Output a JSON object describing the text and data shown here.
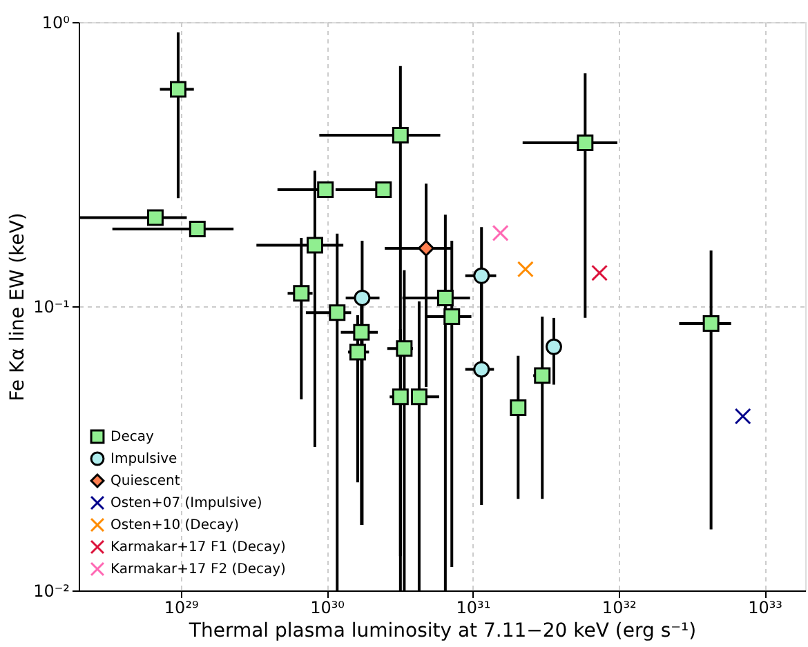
{
  "chart_data": {
    "type": "scatter",
    "xlabel": "Thermal plasma luminosity at 7.11−20 keV (erg s⁻¹)",
    "ylabel": "Fe Kα line EW (keV)",
    "log": "xy",
    "grid": true,
    "legend": "bottom left",
    "xlim": [
      2e+28,
      1.9e+33
    ],
    "xticks": [
      {
        "value": 1e+29,
        "label": "10²⁹"
      },
      {
        "value": 1e+30,
        "label": "10³⁰"
      },
      {
        "value": 1e+31,
        "label": "10³¹"
      },
      {
        "value": 1e+32,
        "label": "10³²"
      },
      {
        "value": 1e+33,
        "label": "10³³"
      }
    ],
    "ylim": [
      0.01,
      1
    ],
    "yticks": [
      {
        "value": 0.01,
        "label": "10⁻²"
      },
      {
        "value": 0.1,
        "label": "10⁻¹"
      },
      {
        "value": 1,
        "label": "10⁰"
      }
    ],
    "series": [
      {
        "name": "Decay",
        "color": "#90ee90",
        "marker": "square",
        "x": [
          9.6e+28,
          6.7e+28,
          1.3e+29,
          3.2e+30,
          9.8e+29,
          2.45e+30,
          8.3e+29,
          6.7e+29,
          1.18e+30,
          1.73e+30,
          1.63e+30,
          3.4e+30,
          3.2e+30,
          4.3e+30,
          6.5e+30,
          7.2e+30,
          5.9e+31,
          2.05e+31,
          3e+31,
          4.3e+32
        ],
        "values": [
          0.58,
          0.205,
          0.187,
          0.4,
          0.257,
          0.257,
          0.164,
          0.111,
          0.095,
          0.081,
          0.069,
          0.071,
          0.048,
          0.048,
          0.107,
          0.092,
          0.376,
          0.044,
          0.057,
          0.087
        ],
        "errors": [
          [
            0.24,
            0.92
          ],
          null,
          null,
          [
            0.01,
            0.7
          ],
          null,
          null,
          [
            0.032,
            0.3
          ],
          [
            0.047,
            0.174
          ],
          [
            0.01,
            0.18
          ],
          [
            0.017,
            0.11
          ],
          [
            0.024,
            0.093
          ],
          [
            0.01,
            0.134
          ],
          [
            0.0132,
            0.083
          ],
          [
            0.01,
            0.104
          ],
          [
            0.01,
            0.21
          ],
          [
            0.0121,
            0.17
          ],
          [
            0.091,
            0.66
          ],
          [
            0.021,
            0.067
          ],
          [
            0.021,
            0.092
          ],
          [
            0.0164,
            0.157
          ]
        ],
        "xerrors": [
          [
            7.2e+28,
            1.23e+29
          ],
          [
            2e+28,
            1.1e+29
          ],
          [
            3.4e+28,
            2.3e+29
          ],
          [
            8.9e+29,
            6e+30
          ],
          [
            4.6e+29,
            9.8e+29
          ],
          [
            1.15e+30,
            2.45e+30
          ],
          [
            3.3e+29,
            1.3e+30
          ],
          [
            5.4e+29,
            8e+29
          ],
          [
            7.2e+29,
            1.47e+30
          ],
          [
            1.25e+30,
            2.24e+30
          ],
          [
            1.4e+30,
            1.95e+30
          ],
          [
            2.6e+30,
            3.9e+30
          ],
          [
            2.7e+30,
            3.6e+30
          ],
          [
            3.9e+30,
            5.9e+30
          ],
          [
            3.3e+30,
            9.6e+30
          ],
          [
            4.7e+30,
            9.8e+30
          ],
          [
            2.2e+31,
            9.8e+31
          ],
          null,
          [
            2.6e+31,
            3e+31
          ],
          [
            2.6e+32,
            5.9e+32
          ]
        ]
      },
      {
        "name": "Impulsive",
        "color": "#b0eeee",
        "marker": "circle",
        "x": [
          1.75e+30,
          1.15e+31,
          1.15e+31,
          3.6e+31
        ],
        "values": [
          0.107,
          0.128,
          0.06,
          0.072
        ],
        "errors": [
          [
            0.017,
            0.17
          ],
          [
            0.06,
            0.19
          ],
          [
            0.02,
            0.128
          ],
          [
            0.053,
            0.091
          ]
        ],
        "xerrors": [
          [
            1.35e+30,
            2.3e+30
          ],
          [
            8.9e+30,
            1.45e+31
          ],
          [
            8.9e+30,
            1.4e+31
          ],
          null
        ]
      },
      {
        "name": "Quiescent",
        "color": "#ff7f50",
        "marker": "diamond",
        "x": [
          4.8e+30
        ],
        "values": [
          0.16
        ],
        "errors": [
          [
            0.052,
            0.27
          ]
        ],
        "xerrors": [
          [
            2.5e+30,
            7.3e+30
          ]
        ]
      },
      {
        "name": "Osten+07 (Impulsive)",
        "color": "#00008b",
        "marker": "cross",
        "x": [
          7.1e+32
        ],
        "values": [
          0.041
        ]
      },
      {
        "name": "Osten+10 (Decay)",
        "color": "#ff8c00",
        "marker": "cross",
        "x": [
          2.3e+31
        ],
        "values": [
          0.135
        ]
      },
      {
        "name": "Karmakar+17 F1 (Decay)",
        "color": "#dc143c",
        "marker": "cross",
        "x": [
          7.4e+31
        ],
        "values": [
          0.131
        ]
      },
      {
        "name": "Karmakar+17 F2 (Decay)",
        "color": "#ff69b4",
        "marker": "cross",
        "x": [
          1.55e+31
        ],
        "values": [
          0.181
        ]
      }
    ]
  }
}
